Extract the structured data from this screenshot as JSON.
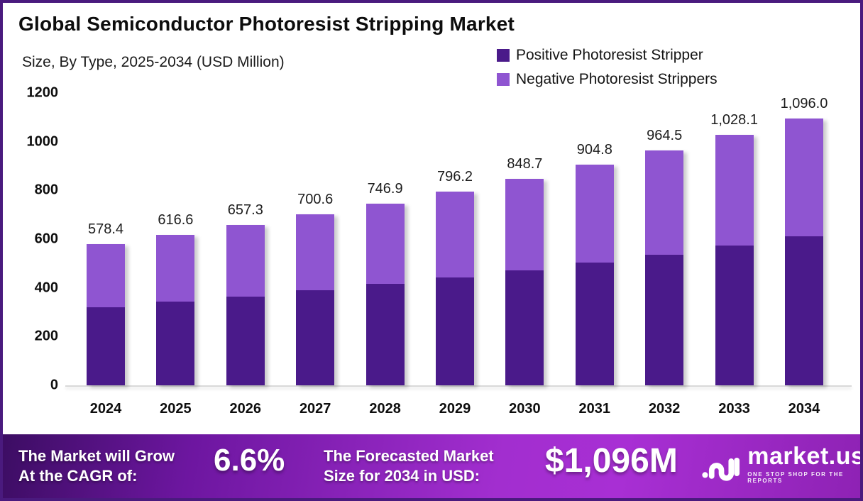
{
  "frame": {
    "border_color": "#4a1a7e",
    "background": "#ffffff"
  },
  "header": {
    "title": "Global Semiconductor Photoresist Stripping Market",
    "subtitle": "Size, By Type, 2025-2034 (USD Million)"
  },
  "chart_data": {
    "type": "bar",
    "stacked": true,
    "title": "Global Semiconductor Photoresist Stripping Market Size, By Type, 2025-2034 (USD Million)",
    "categories": [
      "2024",
      "2025",
      "2026",
      "2027",
      "2028",
      "2029",
      "2030",
      "2031",
      "2032",
      "2033",
      "2034"
    ],
    "series": [
      {
        "name": "Positive Photoresist Stripper",
        "color": "#4a1a8a",
        "values_estimated_from_pixels": true,
        "values": [
          320,
          343,
          364,
          390,
          416,
          442,
          472,
          504,
          535,
          574,
          611
        ]
      },
      {
        "name": "Negative Photoresist Strippers",
        "color": "#8f55d1",
        "values_estimated_from_pixels": true,
        "values": [
          258.4,
          273.6,
          293.3,
          310.6,
          330.9,
          354.2,
          376.7,
          400.8,
          429.5,
          454.1,
          485.0
        ]
      }
    ],
    "totals": [
      578.4,
      616.6,
      657.3,
      700.6,
      746.9,
      796.2,
      848.7,
      904.8,
      964.5,
      1028.1,
      1096.0
    ],
    "total_labels": [
      "578.4",
      "616.6",
      "657.3",
      "700.6",
      "746.9",
      "796.2",
      "848.7",
      "904.8",
      "964.5",
      "1,028.1",
      "1,096.0"
    ],
    "xlabel": "",
    "ylabel": "",
    "ylim": [
      0,
      1200
    ],
    "y_ticks": [
      0,
      200,
      400,
      600,
      800,
      1000,
      1200
    ],
    "y_tick_labels": [
      "0",
      "200",
      "400",
      "600",
      "800",
      "1000",
      "1200"
    ],
    "grid": false,
    "legend_position": "top-right"
  },
  "legend": {
    "items": [
      {
        "label": "Positive Photoresist Stripper",
        "color": "#4a1a8a"
      },
      {
        "label": "Negative Photoresist Strippers",
        "color": "#8f55d1"
      }
    ]
  },
  "footer": {
    "cagr_label_line1": "The Market will Grow",
    "cagr_label_line2": "At the CAGR of:",
    "cagr_value": "6.6%",
    "forecast_label_line1": "The Forecasted Market",
    "forecast_label_line2": "Size for 2034 in USD:",
    "forecast_value": "$1,096M",
    "brand_name": "market.us",
    "brand_tagline": "ONE STOP SHOP FOR THE REPORTS",
    "gradient_colors": [
      "#3c0d63",
      "#a22ecf",
      "#8e22b4"
    ]
  }
}
